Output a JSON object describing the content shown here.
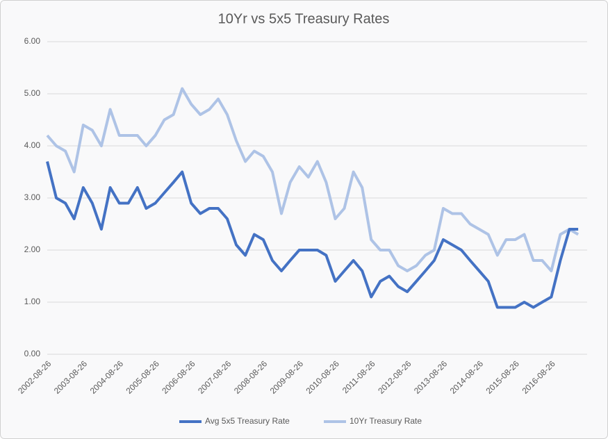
{
  "chart_data": {
    "type": "line",
    "title": "10Yr vs 5x5 Treasury Rates",
    "x": [
      "2002-08-26",
      "2002-11-26",
      "2003-02-26",
      "2003-05-26",
      "2003-08-26",
      "2003-11-26",
      "2004-02-26",
      "2004-05-26",
      "2004-08-26",
      "2004-11-26",
      "2005-02-26",
      "2005-05-26",
      "2005-08-26",
      "2005-11-26",
      "2006-02-26",
      "2006-05-26",
      "2006-08-26",
      "2006-11-26",
      "2007-02-26",
      "2007-05-26",
      "2007-08-26",
      "2007-11-26",
      "2008-02-26",
      "2008-05-26",
      "2008-08-26",
      "2008-11-26",
      "2009-02-26",
      "2009-05-26",
      "2009-08-26",
      "2009-11-26",
      "2010-02-26",
      "2010-05-26",
      "2010-08-26",
      "2010-11-26",
      "2011-02-26",
      "2011-05-26",
      "2011-08-26",
      "2011-11-26",
      "2012-02-26",
      "2012-05-26",
      "2012-08-26",
      "2012-11-26",
      "2013-02-26",
      "2013-05-26",
      "2013-08-26",
      "2013-11-26",
      "2014-02-26",
      "2014-05-26",
      "2014-08-26",
      "2014-11-26",
      "2015-02-26",
      "2015-05-26",
      "2015-08-26",
      "2015-11-26",
      "2016-02-26",
      "2016-05-26",
      "2016-08-26",
      "2016-11-26",
      "2017-02-26",
      "2017-05-26"
    ],
    "series": [
      {
        "name": "Avg 5x5 Treasury Rate",
        "color": "#4472c4",
        "values": [
          3.7,
          3.0,
          2.9,
          2.6,
          3.2,
          2.9,
          2.4,
          3.2,
          2.9,
          2.9,
          3.2,
          2.8,
          2.9,
          3.1,
          3.3,
          3.5,
          2.9,
          2.7,
          2.8,
          2.8,
          2.6,
          2.1,
          1.9,
          2.3,
          2.2,
          1.8,
          1.6,
          1.8,
          2.0,
          2.0,
          2.0,
          1.9,
          1.4,
          1.6,
          1.8,
          1.6,
          1.1,
          1.4,
          1.5,
          1.3,
          1.2,
          1.4,
          1.6,
          1.8,
          2.2,
          2.1,
          2.0,
          1.8,
          1.6,
          1.4,
          0.9,
          0.9,
          0.9,
          1.0,
          0.9,
          1.0,
          1.1,
          1.8,
          2.4,
          2.4
        ]
      },
      {
        "name": "10Yr Treasury Rate",
        "color": "#aec3e6",
        "values": [
          4.2,
          4.0,
          3.9,
          3.5,
          4.4,
          4.3,
          4.0,
          4.7,
          4.2,
          4.2,
          4.2,
          4.0,
          4.2,
          4.5,
          4.6,
          5.1,
          4.8,
          4.6,
          4.7,
          4.9,
          4.6,
          4.1,
          3.7,
          3.9,
          3.8,
          3.5,
          2.7,
          3.3,
          3.6,
          3.4,
          3.7,
          3.3,
          2.6,
          2.8,
          3.5,
          3.2,
          2.2,
          2.0,
          2.0,
          1.7,
          1.6,
          1.7,
          1.9,
          2.0,
          2.8,
          2.7,
          2.7,
          2.5,
          2.4,
          2.3,
          1.9,
          2.2,
          2.2,
          2.3,
          1.8,
          1.8,
          1.6,
          2.3,
          2.4,
          2.3
        ]
      }
    ],
    "xlim": [
      "2002-08-26",
      "2017-08-25"
    ],
    "xticks": [
      "2002-08-26",
      "2003-08-26",
      "2004-08-26",
      "2005-08-26",
      "2006-08-26",
      "2007-08-26",
      "2008-08-26",
      "2009-08-26",
      "2010-08-26",
      "2011-08-26",
      "2012-08-26",
      "2013-08-26",
      "2014-08-26",
      "2015-08-26",
      "2016-08-26"
    ],
    "ylim": [
      0,
      6
    ],
    "yticks": [
      {
        "value": 0,
        "label": "0.00"
      },
      {
        "value": 1,
        "label": "1.00"
      },
      {
        "value": 2,
        "label": "2.00"
      },
      {
        "value": 3,
        "label": "3.00"
      },
      {
        "value": 4,
        "label": "4.00"
      },
      {
        "value": 5,
        "label": "5.00"
      },
      {
        "value": 6,
        "label": "6.00"
      }
    ],
    "grid": true,
    "legend": "bottom"
  }
}
